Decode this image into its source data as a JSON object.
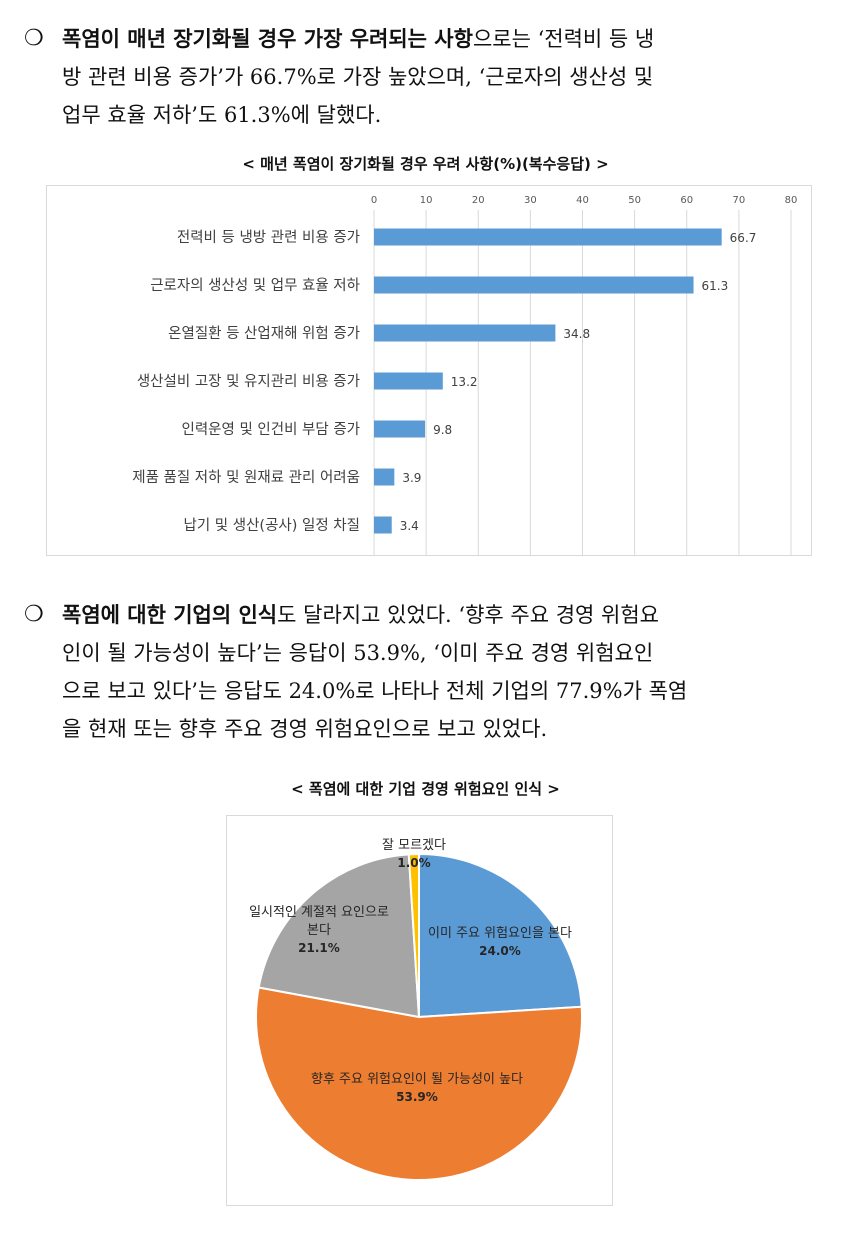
{
  "para1": {
    "line1_bold": "폭염이 매년 장기화될 경우 가장 우려되는 사항",
    "line1_rest": "으로는 ‘전력비 등 냉",
    "line2": "방 관련 비용 증가’가 66.7%로 가장 높았으며, ‘근로자의 생산성 및",
    "line3": "업무 효율 저하’도 61.3%에 달했다."
  },
  "para2": {
    "line1_bold": "폭염에 대한 기업의 인식",
    "line1_rest": "도 달라지고 있었다. ‘향후 주요 경영 위험요",
    "line2": "인이 될 가능성이 높다’는 응답이 53.9%, ‘이미 주요 경영 위험요인",
    "line3": "으로 보고 있다’는 응답도 24.0%로 나타나 전체 기업의 77.9%가 폭염",
    "line4": "을 현재 또는 향후 주요 경영 위험요인으로 보고 있었다."
  },
  "bullet_symbol": "❍",
  "chart_data": [
    {
      "type": "bar",
      "orientation": "horizontal",
      "title": "< 매년 폭염이 장기화될 경우 우려 사항(%)(복수응답) >",
      "categories": [
        "전력비 등 냉방 관련 비용 증가",
        "근로자의 생산성 및 업무 효율 저하",
        "온열질환 등 산업재해 위험 증가",
        "생산설비 고장 및 유지관리 비용 증가",
        "인력운영 및 인건비 부담 증가",
        "제품 품질 저하 및 원재료 관리 어려움",
        "납기 및 생산(공사) 일정 차질"
      ],
      "values": [
        66.7,
        61.3,
        34.8,
        13.2,
        9.8,
        3.9,
        3.4
      ],
      "value_labels": [
        "66.7",
        "61.3",
        "34.8",
        "13.2",
        "9.8",
        "3.9",
        "3.4"
      ],
      "xlim": [
        0,
        80
      ],
      "xticks": [
        0,
        10,
        20,
        30,
        40,
        50,
        60,
        70,
        80
      ],
      "xtick_labels": [
        "0",
        "10",
        "20",
        "30",
        "40",
        "50",
        "60",
        "70",
        "80"
      ],
      "axis_position": "top",
      "grid": true,
      "bar_color": "#5b9bd5"
    },
    {
      "type": "pie",
      "title": "< 폭염에 대한 기업 경영 위험요인 인식 >",
      "slices": [
        {
          "label": "이미 주요 위험요인을 본다",
          "value": 24.0,
          "pct_label": "24.0%",
          "color": "#5b9bd5"
        },
        {
          "label": "향후 주요 위험요인이 될 가능성이 높다",
          "value": 53.9,
          "pct_label": "53.9%",
          "color": "#ed7d31"
        },
        {
          "label_lines": [
            "일시적인 계절적 요인으로",
            "본다"
          ],
          "value": 21.1,
          "pct_label": "21.1%",
          "color": "#a5a5a5"
        },
        {
          "label": "잘 모르겠다",
          "value": 1.0,
          "pct_label": "1.0%",
          "color": "#ffc000"
        }
      ],
      "start_angle_deg": 0,
      "direction": "clockwise"
    }
  ]
}
